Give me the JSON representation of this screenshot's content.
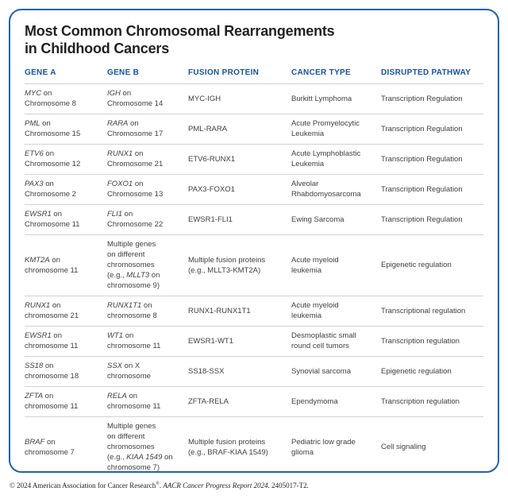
{
  "title": "Most Common Chromosomal Rearrangements\nin Childhood Cancers",
  "colors": {
    "card_border": "#2162ab",
    "header_text": "#1653a4",
    "body_text": "#414042",
    "title_text": "#221f20",
    "divider": "#d2d2d4"
  },
  "table": {
    "columns": [
      "GENE A",
      "GENE B",
      "FUSION PROTEIN",
      "CANCER TYPE",
      "DISRUPTED PATHWAY"
    ],
    "rows": [
      {
        "cells": [
          [
            {
              "text": "MYC",
              "italic": true
            },
            {
              "text": " on"
            },
            {
              "br": true
            },
            {
              "text": "Chromosome 8"
            }
          ],
          [
            {
              "text": "IGH",
              "italic": true
            },
            {
              "text": " on"
            },
            {
              "br": true
            },
            {
              "text": "Chromosome 14"
            }
          ],
          [
            {
              "text": "MYC-IGH"
            }
          ],
          [
            {
              "text": "Burkitt Lymphoma"
            }
          ],
          [
            {
              "text": "Transcription Regulation"
            }
          ]
        ]
      },
      {
        "cells": [
          [
            {
              "text": "PML",
              "italic": true
            },
            {
              "text": " on"
            },
            {
              "br": true
            },
            {
              "text": "Chromosome 15"
            }
          ],
          [
            {
              "text": "RARA",
              "italic": true
            },
            {
              "text": " on"
            },
            {
              "br": true
            },
            {
              "text": "Chromosome 17"
            }
          ],
          [
            {
              "text": "PML-RARA"
            }
          ],
          [
            {
              "text": "Acute Promyelocytic"
            },
            {
              "br": true
            },
            {
              "text": "Leukemia"
            }
          ],
          [
            {
              "text": "Transcription Regulation"
            }
          ]
        ]
      },
      {
        "cells": [
          [
            {
              "text": "ETV6",
              "italic": true
            },
            {
              "text": " on"
            },
            {
              "br": true
            },
            {
              "text": "Chromosome 12"
            }
          ],
          [
            {
              "text": "RUNX1",
              "italic": true
            },
            {
              "text": " on"
            },
            {
              "br": true
            },
            {
              "text": "Chromosome 21"
            }
          ],
          [
            {
              "text": "ETV6-RUNX1"
            }
          ],
          [
            {
              "text": "Acute Lymphoblastic"
            },
            {
              "br": true
            },
            {
              "text": "Leukemia"
            }
          ],
          [
            {
              "text": "Transcription Regulation"
            }
          ]
        ]
      },
      {
        "cells": [
          [
            {
              "text": "PAX3",
              "italic": true
            },
            {
              "text": " on"
            },
            {
              "br": true
            },
            {
              "text": "Chromosome 2"
            }
          ],
          [
            {
              "text": "FOXO1",
              "italic": true
            },
            {
              "text": " on"
            },
            {
              "br": true
            },
            {
              "text": "Chromosome 13"
            }
          ],
          [
            {
              "text": "PAX3-FOXO1"
            }
          ],
          [
            {
              "text": "Alveolar"
            },
            {
              "br": true
            },
            {
              "text": "Rhabdomyosarcoma"
            }
          ],
          [
            {
              "text": "Transcription Regulation"
            }
          ]
        ]
      },
      {
        "cells": [
          [
            {
              "text": "EWSR1",
              "italic": true
            },
            {
              "text": " on"
            },
            {
              "br": true
            },
            {
              "text": "Chromosome 11"
            }
          ],
          [
            {
              "text": "FLI1",
              "italic": true
            },
            {
              "text": " on"
            },
            {
              "br": true
            },
            {
              "text": "Chromosome 22"
            }
          ],
          [
            {
              "text": "EWSR1-FLI1"
            }
          ],
          [
            {
              "text": "Ewing Sarcoma"
            }
          ],
          [
            {
              "text": "Transcription Regulation"
            }
          ]
        ]
      },
      {
        "cells": [
          [
            {
              "text": "KMT2A",
              "italic": true
            },
            {
              "text": " on"
            },
            {
              "br": true
            },
            {
              "text": "chromosome 11"
            }
          ],
          [
            {
              "text": "Multiple genes"
            },
            {
              "br": true
            },
            {
              "text": "on different"
            },
            {
              "br": true
            },
            {
              "text": "chromosomes"
            },
            {
              "br": true
            },
            {
              "text": "(e.g., "
            },
            {
              "text": "MLLT3",
              "italic": true
            },
            {
              "text": " on"
            },
            {
              "br": true
            },
            {
              "text": "chromosome 9)"
            }
          ],
          [
            {
              "text": "Multiple fusion proteins"
            },
            {
              "br": true
            },
            {
              "text": "(e.g., MLLT3-KMT2A)"
            }
          ],
          [
            {
              "text": "Acute myeloid"
            },
            {
              "br": true
            },
            {
              "text": "leukemia"
            }
          ],
          [
            {
              "text": "Epigenetic regulation"
            }
          ]
        ]
      },
      {
        "cells": [
          [
            {
              "text": "RUNX1",
              "italic": true
            },
            {
              "text": " on"
            },
            {
              "br": true
            },
            {
              "text": "chromosome 21"
            }
          ],
          [
            {
              "text": "RUNX1T1",
              "italic": true
            },
            {
              "text": " on"
            },
            {
              "br": true
            },
            {
              "text": "chromosome 8"
            }
          ],
          [
            {
              "text": "RUNX1-RUNX1T1"
            }
          ],
          [
            {
              "text": "Acute myeloid"
            },
            {
              "br": true
            },
            {
              "text": "leukemia"
            }
          ],
          [
            {
              "text": "Transcriptional regulation"
            }
          ]
        ]
      },
      {
        "cells": [
          [
            {
              "text": "EWSR1",
              "italic": true
            },
            {
              "text": " on"
            },
            {
              "br": true
            },
            {
              "text": "chromosome 11"
            }
          ],
          [
            {
              "text": "WT1",
              "italic": true
            },
            {
              "text": " on"
            },
            {
              "br": true
            },
            {
              "text": "chromosome 11"
            }
          ],
          [
            {
              "text": "EWSR1-WT1"
            }
          ],
          [
            {
              "text": "Desmoplastic small"
            },
            {
              "br": true
            },
            {
              "text": "round cell tumors"
            }
          ],
          [
            {
              "text": "Transcription regulation"
            }
          ]
        ]
      },
      {
        "cells": [
          [
            {
              "text": "SS18",
              "italic": true
            },
            {
              "text": " on"
            },
            {
              "br": true
            },
            {
              "text": "chromosome 18"
            }
          ],
          [
            {
              "text": "SSX",
              "italic": true
            },
            {
              "text": " on X"
            },
            {
              "br": true
            },
            {
              "text": "chromosome"
            }
          ],
          [
            {
              "text": "SS18-SSX"
            }
          ],
          [
            {
              "text": "Synovial sarcoma"
            }
          ],
          [
            {
              "text": "Epigenetic regulation"
            }
          ]
        ]
      },
      {
        "cells": [
          [
            {
              "text": "ZFTA",
              "italic": true
            },
            {
              "text": " on"
            },
            {
              "br": true
            },
            {
              "text": "chromosome 11"
            }
          ],
          [
            {
              "text": "RELA",
              "italic": true
            },
            {
              "text": " on"
            },
            {
              "br": true
            },
            {
              "text": "chromosome 11"
            }
          ],
          [
            {
              "text": "ZFTA-RELA"
            }
          ],
          [
            {
              "text": "Ependymoma"
            }
          ],
          [
            {
              "text": "Transcription regulation"
            }
          ]
        ]
      },
      {
        "cells": [
          [
            {
              "text": "BRAF",
              "italic": true
            },
            {
              "text": " on"
            },
            {
              "br": true
            },
            {
              "text": "chromosome 7"
            }
          ],
          [
            {
              "text": "Multiple genes"
            },
            {
              "br": true
            },
            {
              "text": "on different"
            },
            {
              "br": true
            },
            {
              "text": "chromosomes"
            },
            {
              "br": true
            },
            {
              "text": "(e.g., "
            },
            {
              "text": "KIAA 1549",
              "italic": true
            },
            {
              "text": " on"
            },
            {
              "br": true
            },
            {
              "text": "chromosome 7)"
            }
          ],
          [
            {
              "text": "Multiple fusion proteins"
            },
            {
              "br": true
            },
            {
              "text": "(e.g., BRAF-KIAA 1549)"
            }
          ],
          [
            {
              "text": "Pediatric low grade"
            },
            {
              "br": true
            },
            {
              "text": "glioma"
            }
          ],
          [
            {
              "text": "Cell signaling"
            }
          ]
        ]
      }
    ]
  },
  "footer": {
    "segments": [
      {
        "text": "© 2024 American Association for Cancer Research"
      },
      {
        "text": "®",
        "sup": true
      },
      {
        "text": ". "
      },
      {
        "text": "AACR Cancer Progress Report 2024.",
        "italic": true
      },
      {
        "text": " 2405017-T2."
      }
    ]
  }
}
